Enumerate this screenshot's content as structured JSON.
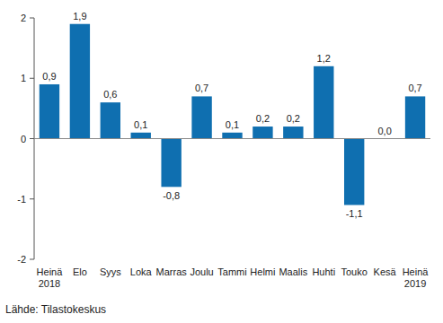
{
  "chart_data": {
    "type": "bar",
    "categories": [
      "Heinä\n2018",
      "Elo",
      "Syys",
      "Loka",
      "Marras",
      "Joulu",
      "Tammi",
      "Helmi",
      "Maalis",
      "Huhti",
      "Touko",
      "Kesä",
      "Heinä\n2019"
    ],
    "values": [
      0.9,
      1.9,
      0.6,
      0.1,
      -0.8,
      0.7,
      0.1,
      0.2,
      0.2,
      1.2,
      -1.1,
      0.0,
      0.7
    ],
    "value_labels": [
      "0,9",
      "1,9",
      "0,6",
      "0,1",
      "-0,8",
      "0,7",
      "0,1",
      "0,2",
      "0,2",
      "1,2",
      "-1,1",
      "0,0",
      "0,7"
    ],
    "color": "#0f6fb0",
    "ylim": [
      -2,
      2
    ],
    "yticks": [
      -2,
      -1,
      0,
      1,
      2
    ],
    "grid": false,
    "data_labels": true,
    "source": "Lähde: Tilastokeskus"
  }
}
